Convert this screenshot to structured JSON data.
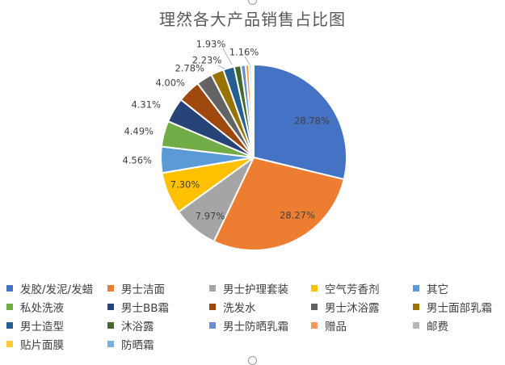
{
  "chart_data": {
    "type": "pie",
    "title": "理然各大产品销售占比图",
    "unit": "%",
    "slices": [
      {
        "label": "发胶/发泥/发蜡",
        "value": 28.78,
        "color": "#4472C4",
        "data_label": "28.78%"
      },
      {
        "label": "男士洁面",
        "value": 28.27,
        "color": "#ED7D31",
        "data_label": "28.27%"
      },
      {
        "label": "男士护理套装",
        "value": 7.97,
        "color": "#A5A5A5",
        "data_label": "7.97%"
      },
      {
        "label": "空气芳香剂",
        "value": 7.3,
        "color": "#FFC000",
        "data_label": "7.30%"
      },
      {
        "label": "其它",
        "value": 4.56,
        "color": "#5B9BD5",
        "data_label": "4.56%"
      },
      {
        "label": "私处洗液",
        "value": 4.49,
        "color": "#70AD47",
        "data_label": "4.49%"
      },
      {
        "label": "男士BB霜",
        "value": 4.31,
        "color": "#264478",
        "data_label": "4.31%"
      },
      {
        "label": "洗发水",
        "value": 4.0,
        "color": "#9E480E",
        "data_label": "4.00%"
      },
      {
        "label": "男士沐浴露",
        "value": 2.78,
        "color": "#636363",
        "data_label": "2.78%"
      },
      {
        "label": "男士面部乳霜",
        "value": 2.23,
        "color": "#997300",
        "data_label": "2.23%"
      },
      {
        "label": "男士造型",
        "value": 1.93,
        "color": "#255E91",
        "data_label": "1.93%"
      },
      {
        "label": "沐浴露",
        "value": 1.16,
        "color": "#43682B",
        "data_label": "1.16%"
      },
      {
        "label": "男士防晒乳霜",
        "value": 0.8,
        "color": "#698ED0",
        "data_label": ""
      },
      {
        "label": "赠品",
        "value": 0.6,
        "color": "#F1975A",
        "data_label": ""
      },
      {
        "label": "邮费",
        "value": 0.4,
        "color": "#B7B7B7",
        "data_label": ""
      },
      {
        "label": "贴片面膜",
        "value": 0.25,
        "color": "#FFCD33",
        "data_label": ""
      },
      {
        "label": "防晒霜",
        "value": 0.17,
        "color": "#7CAFDD",
        "data_label": ""
      }
    ],
    "legend_position": "bottom"
  }
}
